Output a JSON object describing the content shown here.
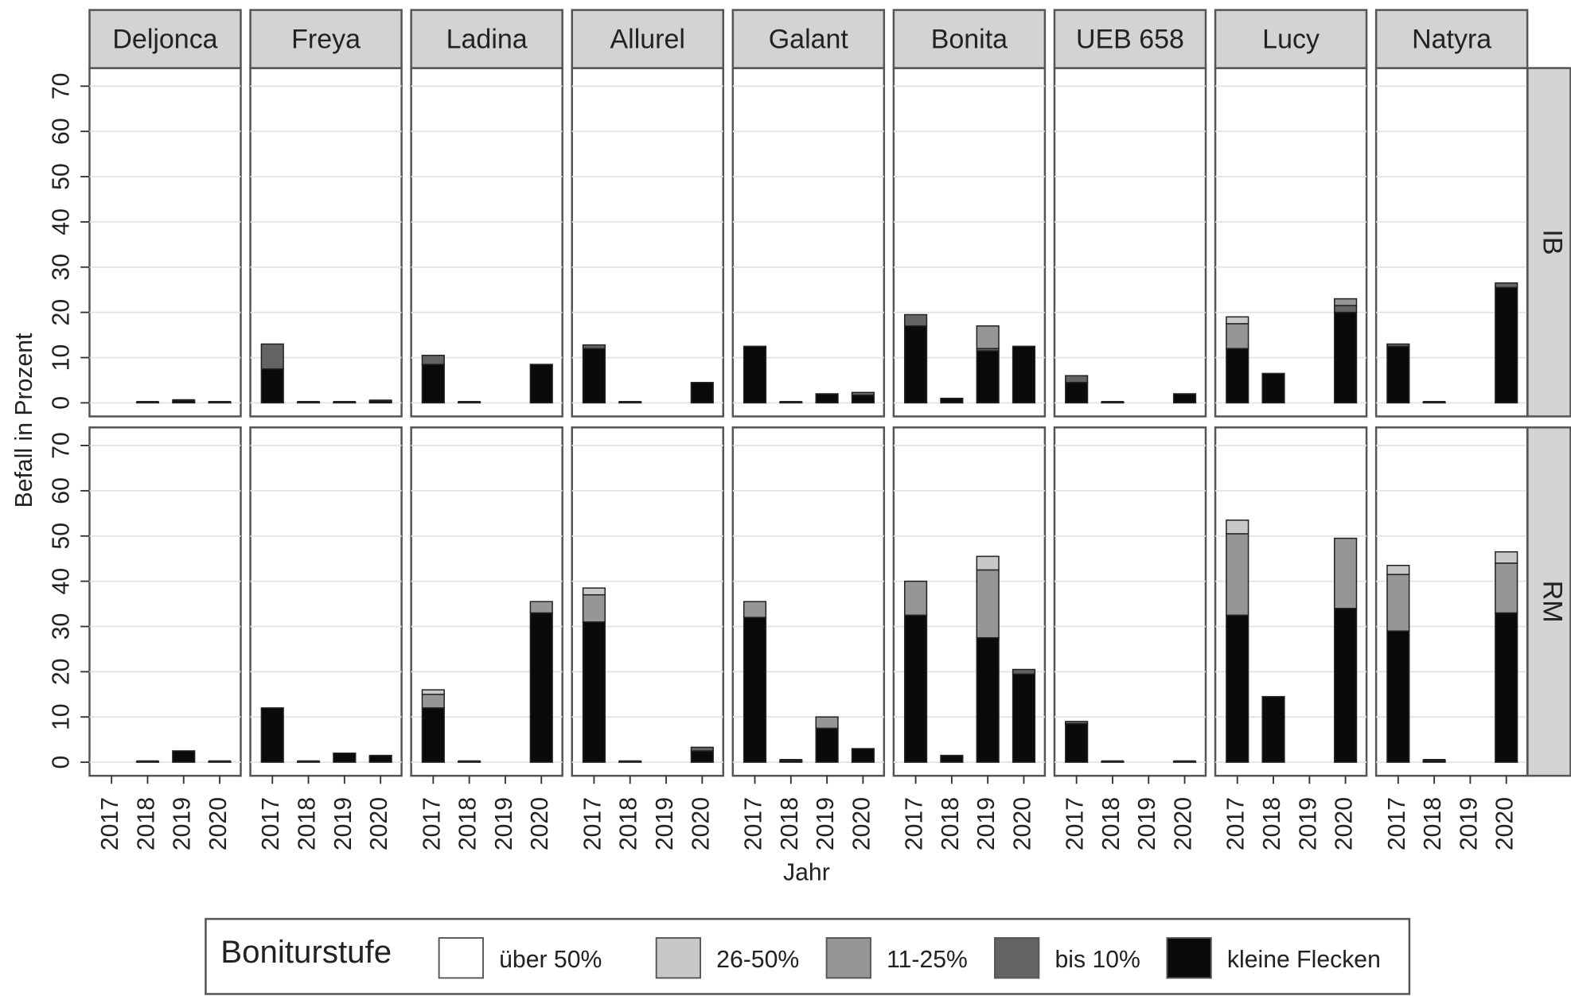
{
  "chart_data": {
    "type": "bar",
    "stacked": true,
    "x_label": "Jahr",
    "y_label": "Befall in Prozent",
    "legend_title": "Boniturstufe",
    "columns": [
      "Deljonca",
      "Freya",
      "Ladina",
      "Allurel",
      "Galant",
      "Bonita",
      "UEB 658",
      "Lucy",
      "Natyra"
    ],
    "rows": [
      "IB",
      "RM"
    ],
    "categories": [
      "2017",
      "2018",
      "2019",
      "2020"
    ],
    "ylim": [
      -3,
      74
    ],
    "yticks": [
      0,
      10,
      20,
      30,
      40,
      50,
      60,
      70
    ],
    "grid": true,
    "series": [
      {
        "name": "über 50%",
        "color": "#ffffff",
        "values": [
          [
            [
              null,
              0,
              0,
              0
            ],
            [
              0,
              0,
              0,
              0
            ],
            [
              0,
              0,
              null,
              0
            ],
            [
              0,
              0,
              null,
              0
            ],
            [
              0,
              0,
              0,
              0
            ],
            [
              0,
              0,
              0,
              0
            ],
            [
              0,
              0,
              null,
              0
            ],
            [
              0,
              0,
              null,
              0
            ],
            [
              0,
              0,
              null,
              0
            ]
          ],
          [
            [
              null,
              0,
              0,
              0
            ],
            [
              0,
              0,
              0,
              0
            ],
            [
              0,
              0,
              null,
              0
            ],
            [
              0,
              0,
              null,
              0
            ],
            [
              0,
              0,
              0,
              0
            ],
            [
              0,
              0,
              0,
              0
            ],
            [
              0,
              0,
              null,
              0
            ],
            [
              0,
              0,
              null,
              0
            ],
            [
              0,
              0,
              null,
              0
            ]
          ]
        ]
      },
      {
        "name": "26-50%",
        "color": "#c8c8c8",
        "values": [
          [
            [
              null,
              0,
              0,
              0
            ],
            [
              0,
              0,
              0,
              0
            ],
            [
              0,
              0,
              null,
              0
            ],
            [
              0,
              0,
              null,
              0
            ],
            [
              0,
              0,
              0,
              0
            ],
            [
              0,
              0,
              0,
              0
            ],
            [
              0,
              0,
              null,
              0
            ],
            [
              1.5,
              0,
              null,
              0
            ],
            [
              0,
              0,
              null,
              0
            ]
          ],
          [
            [
              null,
              0,
              0,
              0
            ],
            [
              0,
              0,
              0,
              0
            ],
            [
              1,
              0,
              null,
              0
            ],
            [
              1.5,
              0,
              null,
              0
            ],
            [
              0,
              0,
              0,
              0
            ],
            [
              0,
              0,
              3,
              0
            ],
            [
              0,
              0,
              null,
              0
            ],
            [
              3,
              0,
              null,
              0
            ],
            [
              2,
              0,
              null,
              2.5
            ]
          ]
        ]
      },
      {
        "name": "11-25%",
        "color": "#969696",
        "values": [
          [
            [
              null,
              0,
              0,
              0
            ],
            [
              0,
              0,
              0,
              0
            ],
            [
              0,
              0,
              null,
              0
            ],
            [
              0,
              0,
              null,
              0
            ],
            [
              0,
              0,
              0,
              0
            ],
            [
              0,
              0,
              5,
              0
            ],
            [
              0,
              0,
              null,
              0
            ],
            [
              5.5,
              0,
              null,
              1.5
            ],
            [
              0,
              0,
              null,
              0
            ]
          ],
          [
            [
              null,
              0,
              0,
              0
            ],
            [
              0,
              0,
              0,
              0
            ],
            [
              3,
              0,
              null,
              2.5
            ],
            [
              6,
              0,
              null,
              0
            ],
            [
              3.5,
              0,
              2.5,
              0
            ],
            [
              7.5,
              0,
              15,
              0
            ],
            [
              0,
              0,
              null,
              0
            ],
            [
              18,
              0,
              null,
              15.5
            ],
            [
              12.5,
              0,
              null,
              11
            ]
          ]
        ]
      },
      {
        "name": "bis 10%",
        "color": "#646464",
        "values": [
          [
            [
              null,
              0,
              0,
              0
            ],
            [
              5.5,
              0,
              0,
              0
            ],
            [
              2,
              0,
              null,
              0
            ],
            [
              0.8,
              0,
              null,
              0
            ],
            [
              0,
              0,
              0,
              0.6
            ],
            [
              2.5,
              0,
              0.5,
              0
            ],
            [
              1.5,
              0,
              null,
              0
            ],
            [
              0,
              0,
              null,
              1.5
            ],
            [
              0.5,
              0,
              null,
              1
            ]
          ],
          [
            [
              null,
              0,
              0,
              0
            ],
            [
              0,
              0,
              0,
              0
            ],
            [
              0,
              0,
              null,
              0
            ],
            [
              0,
              0,
              null,
              0.8
            ],
            [
              0,
              0,
              0,
              0
            ],
            [
              0,
              0,
              0,
              1
            ],
            [
              0.5,
              0,
              null,
              0
            ],
            [
              0,
              0,
              null,
              0
            ],
            [
              0,
              0,
              null,
              0
            ]
          ]
        ]
      },
      {
        "name": "kleine Flecken",
        "color": "#0a0a0a",
        "values": [
          [
            [
              null,
              0.2,
              0.6,
              0.2
            ],
            [
              7.5,
              0.2,
              0.2,
              0.5
            ],
            [
              8.5,
              0.2,
              null,
              8.5
            ],
            [
              12,
              0.2,
              null,
              4.5
            ],
            [
              12.5,
              0.2,
              2,
              1.7
            ],
            [
              17,
              1,
              11.5,
              12.5
            ],
            [
              4.5,
              0.2,
              null,
              2
            ],
            [
              12,
              6.5,
              null,
              20
            ],
            [
              12.5,
              0.2,
              null,
              25.5
            ]
          ],
          [
            [
              null,
              0.2,
              2.5,
              0.2
            ],
            [
              12,
              0.2,
              2,
              1.5
            ],
            [
              12,
              0.2,
              null,
              33
            ],
            [
              31,
              0.2,
              null,
              2.5
            ],
            [
              32,
              0.5,
              7.5,
              3
            ],
            [
              32.5,
              1.5,
              27.5,
              19.5
            ],
            [
              8.5,
              0.2,
              null,
              0.2
            ],
            [
              32.5,
              14.5,
              null,
              34
            ],
            [
              29,
              0.5,
              null,
              33
            ]
          ]
        ]
      }
    ]
  }
}
